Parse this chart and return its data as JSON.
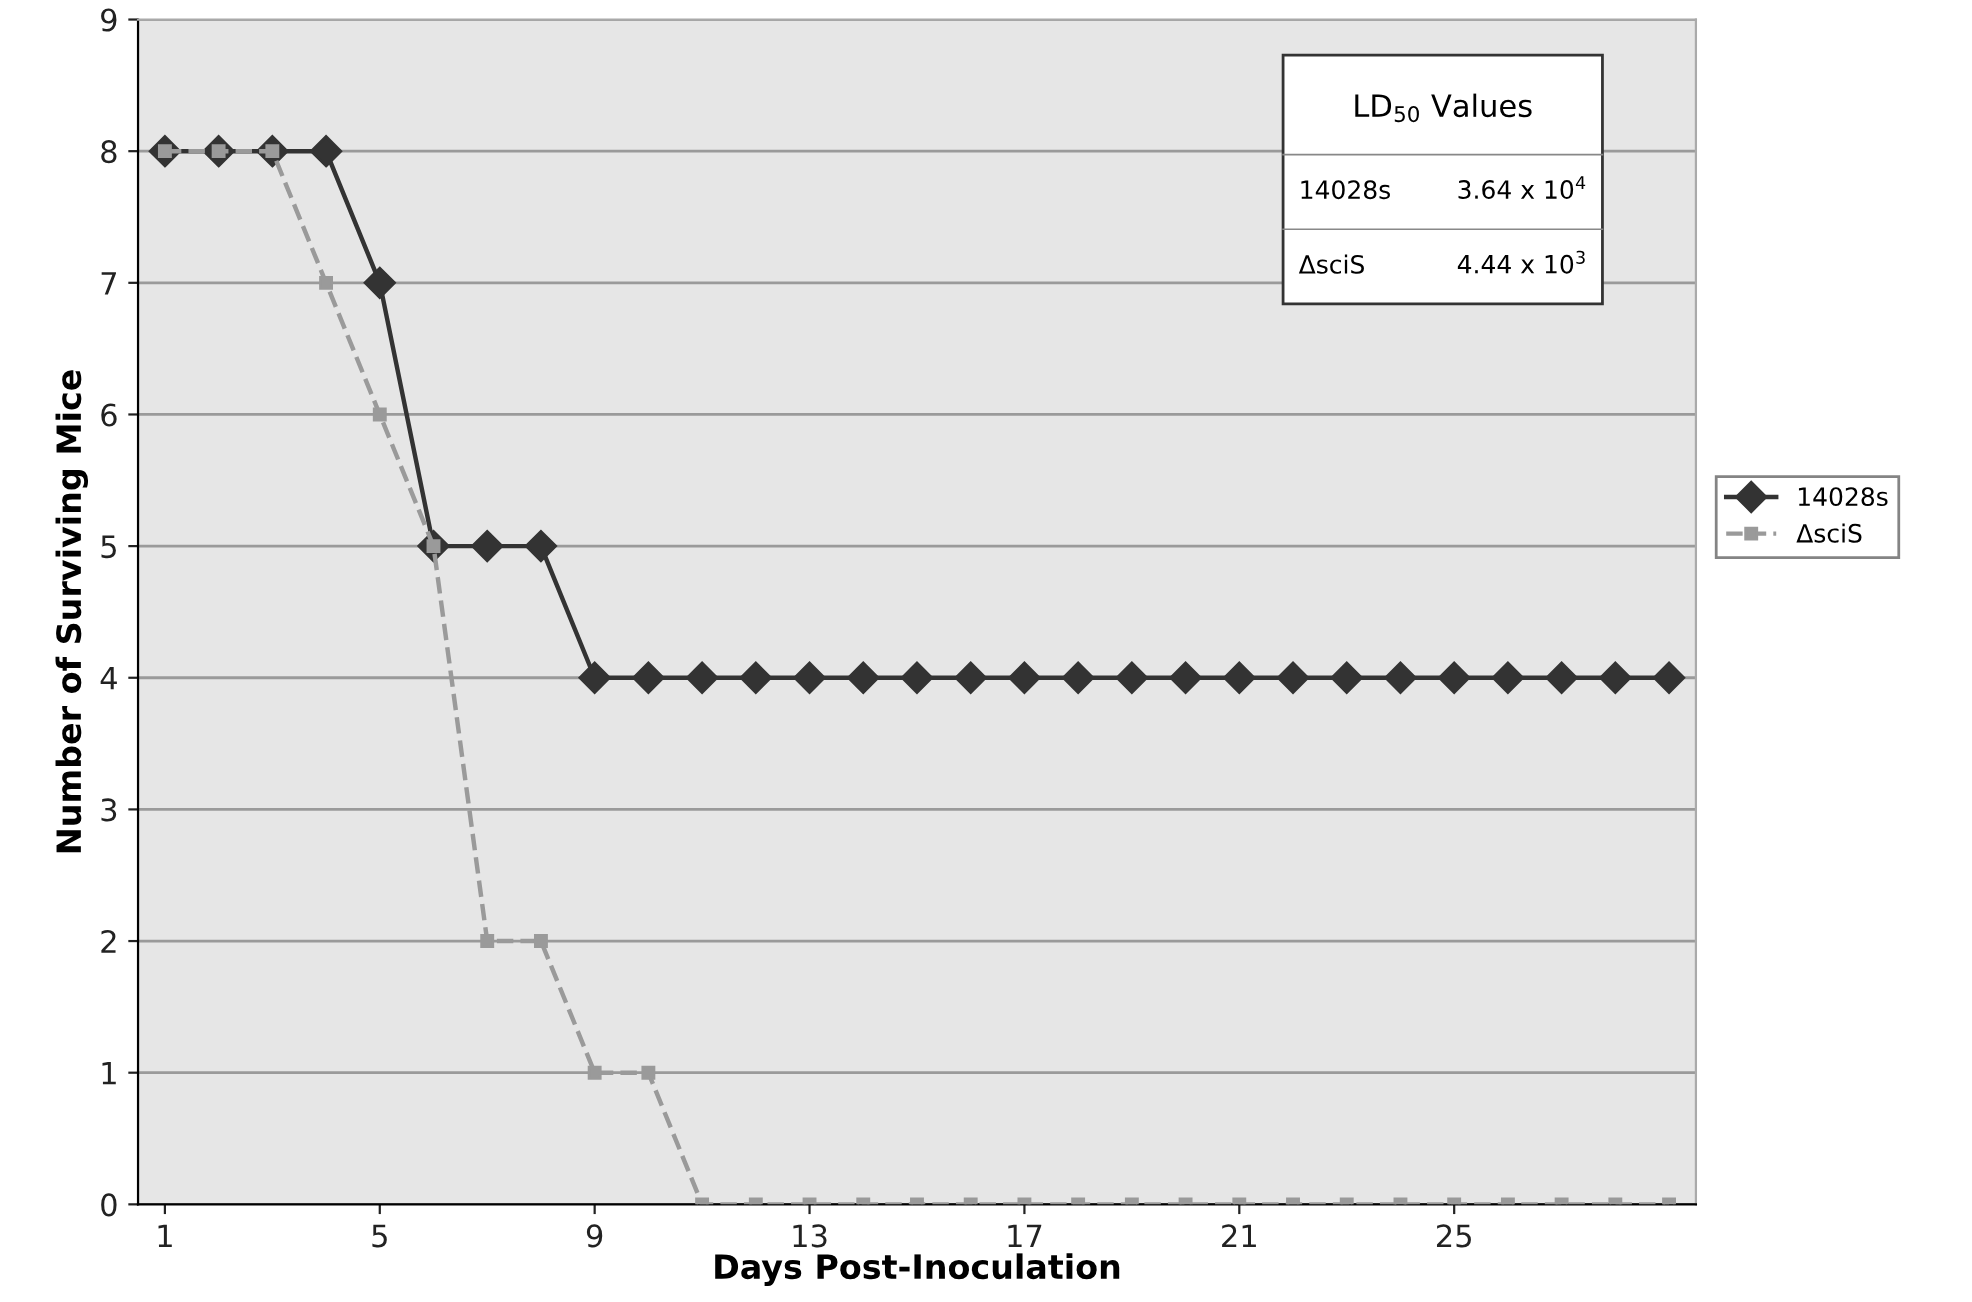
{
  "chart_data": {
    "type": "line",
    "xlabel": "Days Post-Inoculation",
    "ylabel": "Number of Surviving Mice",
    "x": [
      1,
      2,
      3,
      4,
      5,
      6,
      7,
      8,
      9,
      10,
      11,
      12,
      13,
      14,
      15,
      16,
      17,
      18,
      19,
      20,
      21,
      22,
      23,
      24,
      25,
      26,
      27,
      28,
      29
    ],
    "series": [
      {
        "name": "14028s",
        "color": "#333333",
        "marker": "diamond",
        "line_style": "solid",
        "values": [
          8,
          8,
          8,
          8,
          7,
          5,
          5,
          5,
          4,
          4,
          4,
          4,
          4,
          4,
          4,
          4,
          4,
          4,
          4,
          4,
          4,
          4,
          4,
          4,
          4,
          4,
          4,
          4,
          4
        ]
      },
      {
        "name": "ΔsciS",
        "color": "#9a9a9a",
        "marker": "square",
        "line_style": "dashed",
        "values": [
          8,
          8,
          8,
          7,
          6,
          5,
          2,
          2,
          1,
          1,
          0,
          0,
          0,
          0,
          0,
          0,
          0,
          0,
          0,
          0,
          0,
          0,
          0,
          0,
          0,
          0,
          0,
          0,
          0
        ]
      }
    ],
    "xlim": [
      0.5,
      29.5
    ],
    "xticks": [
      1,
      5,
      9,
      13,
      17,
      21,
      25
    ],
    "ylim": [
      0,
      9
    ],
    "yticks": [
      0,
      1,
      2,
      3,
      4,
      5,
      6,
      7,
      8,
      9
    ],
    "grid": "y",
    "legend": "right",
    "annotations": [
      "LD$_{50}$ Values",
      "14028s",
      "3.64 x 10$^{4}$",
      "ΔsciS",
      "4.44 x 10$^{3}$"
    ]
  }
}
